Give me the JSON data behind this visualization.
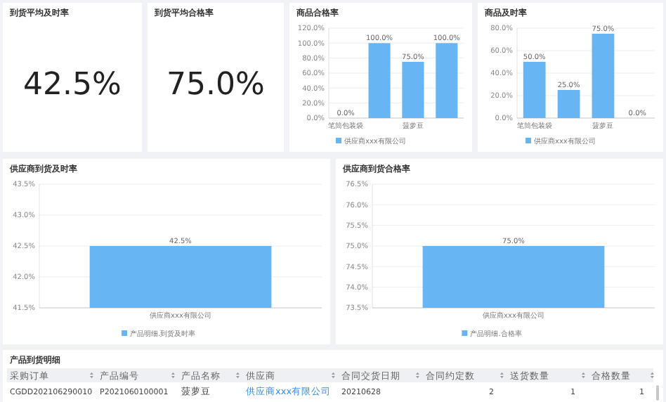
{
  "chart_data": [
    {
      "type": "other",
      "title": "到货平均及时率",
      "annotations": [
        "42.5%"
      ]
    },
    {
      "type": "other",
      "title": "到货平均合格率",
      "annotations": [
        "75.0%"
      ]
    },
    {
      "type": "bar",
      "title": "商品合格率",
      "categories": [
        "笔筒包装袋",
        null,
        "菠萝豆",
        null
      ],
      "series": [
        {
          "name": "供应商xxx有限公司",
          "color": "#68b5f3",
          "values": [
            0,
            100,
            75,
            100
          ],
          "value_labels": [
            "0.0%",
            "100.0%",
            "75.0%",
            "100.0%"
          ]
        }
      ],
      "ylim": [
        0,
        120
      ],
      "yticks": [
        {
          "value": 0,
          "label": "0.0%"
        },
        {
          "value": 20,
          "label": "20.0%"
        },
        {
          "value": 40,
          "label": "40.0%"
        },
        {
          "value": 60,
          "label": "60.0%"
        },
        {
          "value": 80,
          "label": "80.0%"
        },
        {
          "value": 100,
          "label": "100.0%"
        },
        {
          "value": 120,
          "label": "120.0%"
        }
      ],
      "grid": "y",
      "legend": "bottom"
    },
    {
      "type": "bar",
      "title": "商品及时率",
      "categories": [
        "笔筒包装袋",
        null,
        "菠萝豆",
        null
      ],
      "series": [
        {
          "name": "供应商xxx有限公司",
          "color": "#68b5f3",
          "values": [
            50,
            25,
            75,
            0
          ],
          "value_labels": [
            "50.0%",
            "25.0%",
            "75.0%",
            "0.0%"
          ]
        }
      ],
      "ylim": [
        0,
        80
      ],
      "yticks": [
        {
          "value": 0,
          "label": "0.0%"
        },
        {
          "value": 20,
          "label": "20.0%"
        },
        {
          "value": 40,
          "label": "40.0%"
        },
        {
          "value": 60,
          "label": "60.0%"
        },
        {
          "value": 80,
          "label": "80.0%"
        }
      ],
      "grid": "y",
      "legend": "bottom"
    },
    {
      "type": "bar",
      "title": "供应商到货及时率",
      "categories": [
        "供应商xxx有限公司"
      ],
      "series": [
        {
          "name": "产品明细.到货及时率",
          "color": "#68b5f3",
          "values": [
            42.5
          ],
          "value_labels": [
            "42.5%"
          ]
        }
      ],
      "ylim": [
        41.5,
        43.5
      ],
      "yticks": [
        {
          "value": 41.5,
          "label": "41.5%"
        },
        {
          "value": 42,
          "label": "42.0%"
        },
        {
          "value": 42.5,
          "label": "42.5%"
        },
        {
          "value": 43,
          "label": "43.0%"
        },
        {
          "value": 43.5,
          "label": "43.5%"
        }
      ],
      "grid": "y",
      "legend": "bottom"
    },
    {
      "type": "bar",
      "title": "供应商到货合格率",
      "categories": [
        "供应商xxx有限公司"
      ],
      "series": [
        {
          "name": "产品明细.合格率",
          "color": "#68b5f3",
          "values": [
            75
          ],
          "value_labels": [
            "75.0%"
          ]
        }
      ],
      "ylim": [
        73.5,
        76.5
      ],
      "yticks": [
        {
          "value": 73.5,
          "label": "73.5%"
        },
        {
          "value": 74,
          "label": "74.0%"
        },
        {
          "value": 74.5,
          "label": "74.5%"
        },
        {
          "value": 75,
          "label": "75.0%"
        },
        {
          "value": 75.5,
          "label": "75.5%"
        },
        {
          "value": 76,
          "label": "76.0%"
        },
        {
          "value": 76.5,
          "label": "76.5%"
        }
      ],
      "grid": "y",
      "legend": "bottom"
    },
    {
      "type": "other",
      "title": "产品到货明细",
      "annotations": [
        "采购订单",
        "产品编号",
        "产品名称",
        "供应商",
        "合同交货日期",
        "合同约定数",
        "送货数量",
        "合格数量",
        "CGDD202106290010",
        "P2021060100001",
        "菠萝豆",
        "供应商xxx有限公司",
        "20210628",
        "2",
        "1",
        "1"
      ]
    }
  ]
}
